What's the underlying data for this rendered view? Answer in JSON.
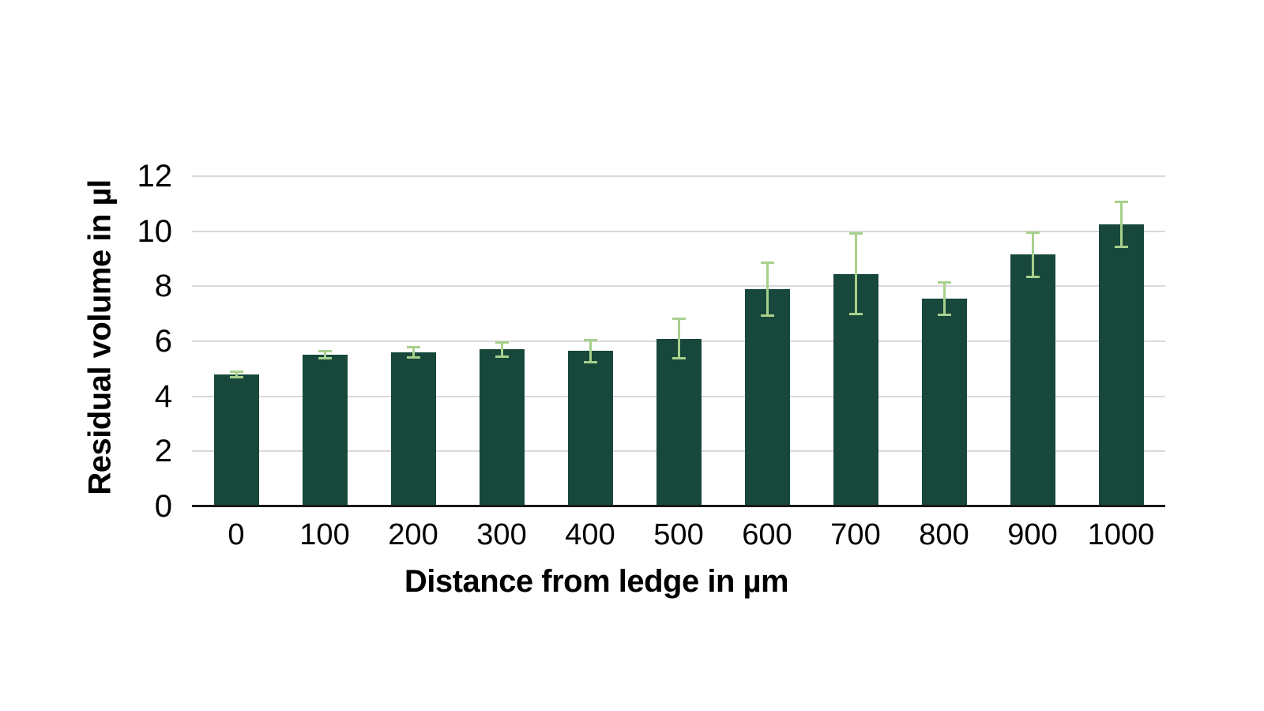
{
  "page": {
    "background": "#ffffff"
  },
  "chart_data": {
    "type": "bar",
    "title": "",
    "xlabel": "Distance from ledge in µm",
    "ylabel": "Residual volume in µl",
    "categories": [
      "0",
      "100",
      "200",
      "300",
      "400",
      "500",
      "600",
      "700",
      "800",
      "900",
      "1000"
    ],
    "values": [
      4.8,
      5.5,
      5.6,
      5.7,
      5.65,
      6.1,
      7.9,
      8.45,
      7.55,
      9.15,
      10.25
    ],
    "error_bars": [
      0.15,
      0.17,
      0.22,
      0.3,
      0.45,
      0.75,
      1.0,
      1.5,
      0.63,
      0.85,
      0.85
    ],
    "ylim": [
      0,
      12
    ],
    "yticks": [
      0,
      2,
      4,
      6,
      8,
      10,
      12
    ],
    "grid": "horizontal",
    "legend_position": "none",
    "colors": {
      "bar": "#17483B",
      "error_bar": "#A8D08D",
      "gridline": "#D9D9D9",
      "axis_line": "#1A1A1A",
      "text": "#000000"
    }
  }
}
